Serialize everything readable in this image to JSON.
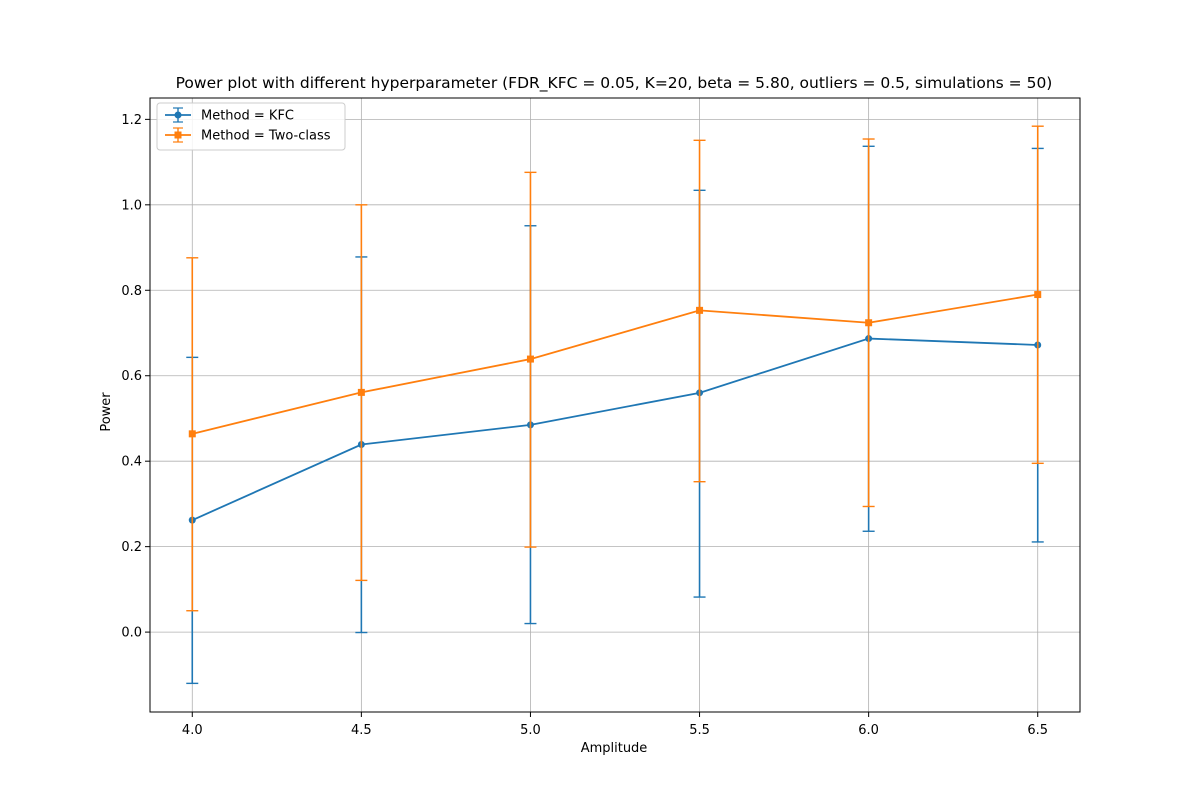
{
  "chart_data": {
    "type": "line",
    "title": "Power plot with different hyperparameter (FDR_KFC = 0.05, K=20, beta = 5.80, outliers = 0.5, simulations = 50)",
    "xlabel": "Amplitude",
    "ylabel": "Power",
    "x": [
      4.0,
      4.5,
      5.0,
      5.5,
      6.0,
      6.5
    ],
    "x_ticks": [
      "4.0",
      "4.5",
      "5.0",
      "5.5",
      "6.0",
      "6.5"
    ],
    "y_ticks": [
      "0.0",
      "0.2",
      "0.4",
      "0.6",
      "0.8",
      "1.0",
      "1.2"
    ],
    "xlim": [
      3.875,
      6.625
    ],
    "ylim": [
      -0.187,
      1.25
    ],
    "grid": true,
    "legend_position": "top-left",
    "series": [
      {
        "name": "Method = KFC",
        "color": "#1f77b4",
        "marker": "circle",
        "values": [
          0.262,
          0.439,
          0.485,
          0.56,
          0.687,
          0.672
        ],
        "err_low": [
          -0.12,
          -0.001,
          0.02,
          0.082,
          0.236,
          0.211
        ],
        "err_high": [
          0.643,
          0.878,
          0.951,
          1.034,
          1.137,
          1.132
        ]
      },
      {
        "name": "Method = Two-class",
        "color": "#ff7f0e",
        "marker": "square",
        "values": [
          0.464,
          0.561,
          0.639,
          0.753,
          0.724,
          0.79
        ],
        "err_low": [
          0.05,
          0.121,
          0.199,
          0.352,
          0.294,
          0.395
        ],
        "err_high": [
          0.876,
          1.0,
          1.076,
          1.151,
          1.154,
          1.184
        ]
      }
    ]
  }
}
